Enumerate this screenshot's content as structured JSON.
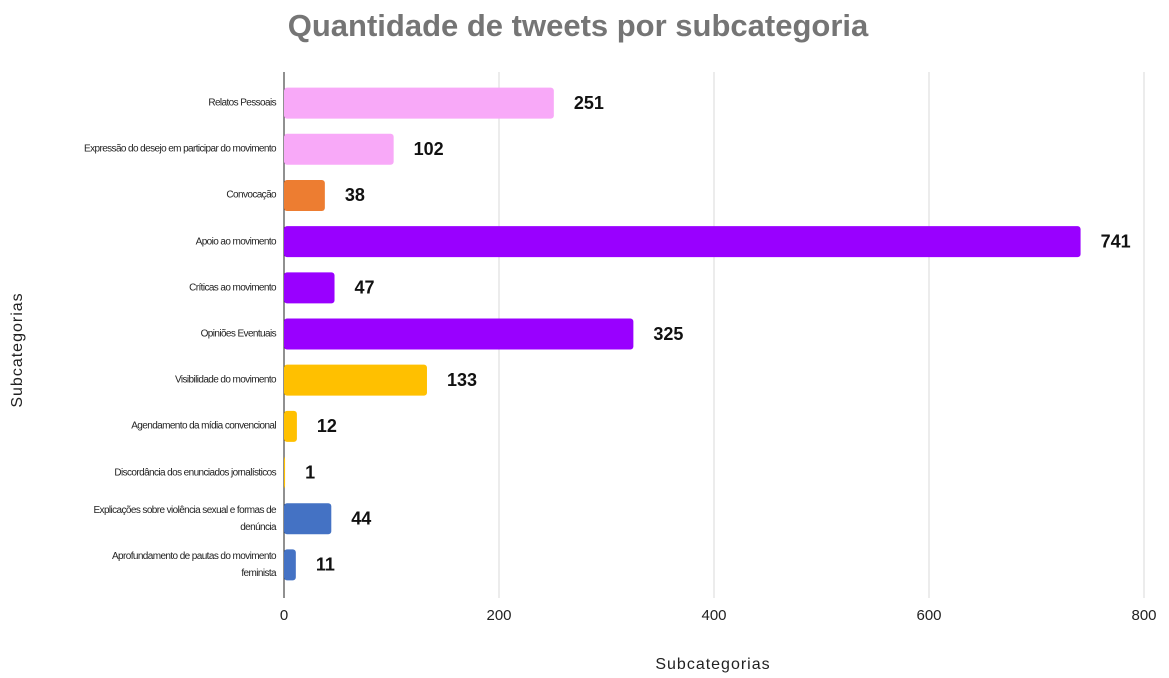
{
  "chart_data": {
    "type": "bar",
    "orientation": "horizontal",
    "title": "Quantidade de tweets por subcategoria",
    "x_label": "Subcategorias",
    "y_label": "Subcategorias",
    "categories": [
      "Relatos Pessoais",
      "Expressão do desejo em participar do movimento",
      "Convocação",
      "Apoio ao movimento",
      "Críticas ao movimento",
      "Opiniões Eventuais",
      "Visibilidade do movimento",
      "Agendamento da mídia convencional",
      "Discordância dos enunciados jornalísticos",
      "Explicações sobre violência sexual e formas de denúncia",
      "Aprofundamento de pautas do movimento feminista"
    ],
    "values": [
      251,
      102,
      38,
      741,
      47,
      325,
      133,
      12,
      1,
      44,
      11
    ],
    "colors": [
      "#f8a9f8",
      "#f8a9f8",
      "#ed7d31",
      "#9900ff",
      "#9900ff",
      "#9900ff",
      "#ffc000",
      "#ffc000",
      "#ffc000",
      "#4472c4",
      "#4472c4"
    ],
    "xlim": [
      0,
      800
    ],
    "xticks": [
      0,
      200,
      400,
      600,
      800
    ],
    "grid": true
  }
}
